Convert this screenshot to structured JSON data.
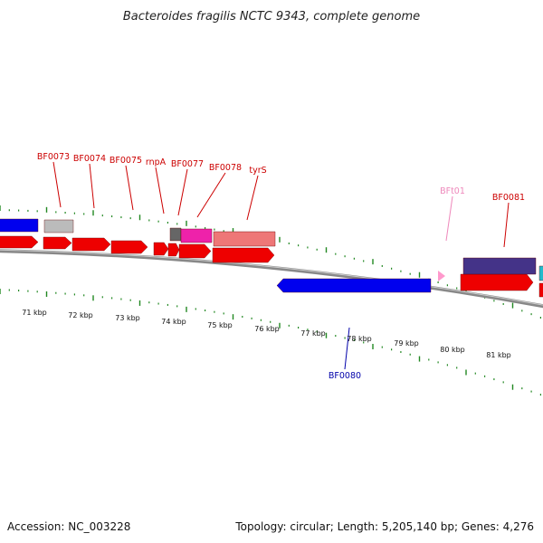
{
  "title": "Bacteroides fragilis NCTC 9343, complete genome",
  "footer": {
    "accession": "Accession: NC_003228",
    "stats": "Topology: circular; Length: 5,205,140 bp; Genes: 4,276"
  },
  "colors": {
    "cds": "#ee0000",
    "blue": "#0000ee",
    "grey": "#bbbbbb",
    "magenta": "#ee22aa",
    "salmon": "#ee7777",
    "navy": "#443388",
    "pink": "#ff99cc",
    "tick": "#228822",
    "backbone": "#888888",
    "label_red": "#cc0000",
    "label_blue": "#0000aa",
    "label_pink": "#ee88bb"
  },
  "kbp_ticks": [
    "71 kbp",
    "72 kbp",
    "73 kbp",
    "74 kbp",
    "75 kbp",
    "76 kbp",
    "77 kbp",
    "78 kbp",
    "79 kbp",
    "80 kbp",
    "81 kbp"
  ],
  "gene_labels": [
    {
      "text": "BF0073",
      "color": "label_red"
    },
    {
      "text": "BF0074",
      "color": "label_red"
    },
    {
      "text": "BF0075",
      "color": "label_red"
    },
    {
      "text": "rnpA",
      "color": "label_red"
    },
    {
      "text": "BF0077",
      "color": "label_red"
    },
    {
      "text": "BF0078",
      "color": "label_red"
    },
    {
      "text": "tyrS",
      "color": "label_red"
    },
    {
      "text": "BFt01",
      "color": "label_pink"
    },
    {
      "text": "BF0081",
      "color": "label_red"
    },
    {
      "text": "BF0080",
      "color": "label_blue"
    }
  ]
}
